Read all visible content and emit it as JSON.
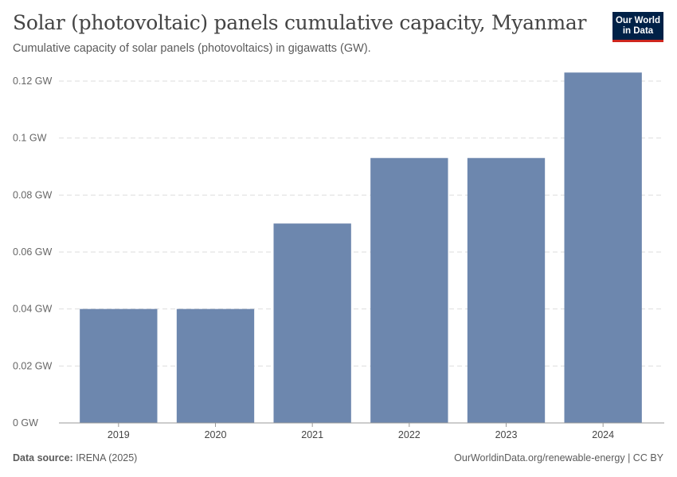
{
  "header": {
    "title": "Solar (photovoltaic) panels cumulative capacity, Myanmar",
    "subtitle": "Cumulative capacity of solar panels (photovoltaics) in gigawatts (GW)."
  },
  "logo": {
    "line1": "Our World",
    "line2": "in Data"
  },
  "footer": {
    "source_label": "Data source:",
    "source_value": "IRENA (2025)",
    "link": "OurWorldinData.org/renewable-energy | CC BY"
  },
  "colors": {
    "bar": "#6d87ae",
    "logo_bg": "#002147",
    "logo_accent": "#ce261e"
  },
  "chart_data": {
    "type": "bar",
    "title": "Solar (photovoltaic) panels cumulative capacity, Myanmar",
    "xlabel": "",
    "ylabel": "",
    "unit": "GW",
    "categories": [
      "2019",
      "2020",
      "2021",
      "2022",
      "2023",
      "2024"
    ],
    "values": [
      0.04,
      0.04,
      0.07,
      0.093,
      0.093,
      0.123
    ],
    "ylim": [
      0,
      0.12
    ],
    "yticks": [
      0,
      0.02,
      0.04,
      0.06,
      0.08,
      0.1,
      0.12
    ],
    "ytick_labels": [
      "0 GW",
      "0.02 GW",
      "0.04 GW",
      "0.06 GW",
      "0.08 GW",
      "0.1 GW",
      "0.12 GW"
    ],
    "grid": true,
    "legend": "none"
  }
}
